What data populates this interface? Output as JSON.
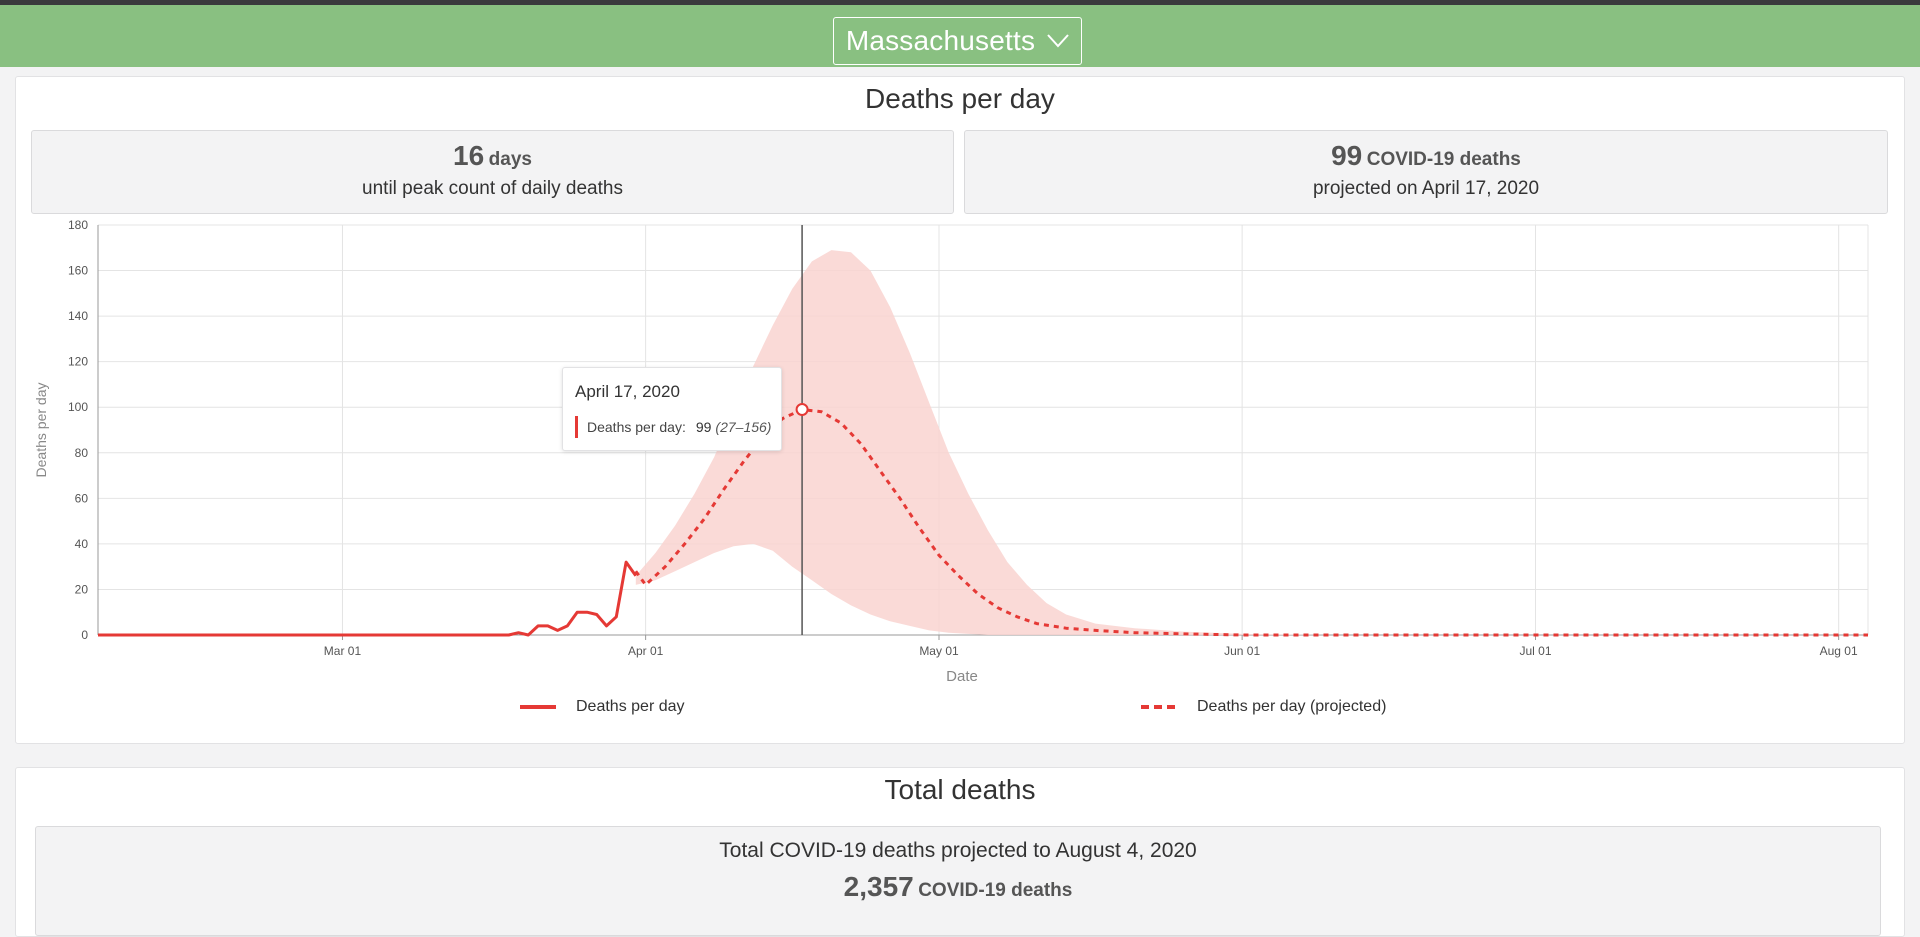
{
  "header": {
    "state_selector": "Massachusetts"
  },
  "deaths_per_day_section": {
    "title": "Deaths per day",
    "peak_stat": {
      "number": "16",
      "unit": "days",
      "description": "until peak count of daily deaths"
    },
    "projection_stat": {
      "number": "99",
      "unit": "COVID-19 deaths",
      "description": "projected on April 17, 2020"
    },
    "tooltip": {
      "date": "April 17, 2020",
      "series_label": "Deaths per day:",
      "value": "99",
      "range": "(27–156)"
    },
    "legend": {
      "actual": "Deaths per day",
      "projected": "Deaths per day (projected)"
    }
  },
  "total_deaths_section": {
    "title": "Total deaths",
    "caption": "Total COVID-19 deaths projected to August 4, 2020",
    "number": "2,357",
    "unit": "COVID-19 deaths"
  },
  "colors": {
    "header_green": "#89c081",
    "series_red": "#e53935",
    "band_pink": "#f9d3d0"
  },
  "chart_data": {
    "type": "line",
    "xlabel": "Date",
    "ylabel": "Deaths per day",
    "ylim": [
      0,
      180
    ],
    "yticks": [
      0,
      20,
      40,
      60,
      80,
      100,
      120,
      140,
      160,
      180
    ],
    "xlim": [
      "2020-02-05",
      "2020-08-04"
    ],
    "xticks": [
      {
        "date": "2020-03-01",
        "label": "Mar 01"
      },
      {
        "date": "2020-04-01",
        "label": "Apr 01"
      },
      {
        "date": "2020-05-01",
        "label": "May 01"
      },
      {
        "date": "2020-06-01",
        "label": "Jun 01"
      },
      {
        "date": "2020-07-01",
        "label": "Jul 01"
      },
      {
        "date": "2020-08-01",
        "label": "Aug 01"
      }
    ],
    "grid": true,
    "legend_position": "bottom",
    "highlight": {
      "date": "2020-04-17",
      "value": 99,
      "lower": 27,
      "upper": 156
    },
    "series": [
      {
        "name": "Deaths per day",
        "style": "solid",
        "points": [
          [
            "2020-02-05",
            0
          ],
          [
            "2020-03-18",
            0
          ],
          [
            "2020-03-19",
            1
          ],
          [
            "2020-03-20",
            0
          ],
          [
            "2020-03-21",
            4
          ],
          [
            "2020-03-22",
            4
          ],
          [
            "2020-03-23",
            2
          ],
          [
            "2020-03-24",
            4
          ],
          [
            "2020-03-25",
            10
          ],
          [
            "2020-03-26",
            10
          ],
          [
            "2020-03-27",
            9
          ],
          [
            "2020-03-28",
            4
          ],
          [
            "2020-03-29",
            8
          ],
          [
            "2020-03-30",
            32
          ],
          [
            "2020-03-31",
            26
          ]
        ]
      },
      {
        "name": "Deaths per day (projected)",
        "style": "dashed",
        "points": [
          [
            "2020-03-31",
            28
          ],
          [
            "2020-04-01",
            22
          ],
          [
            "2020-04-03",
            30
          ],
          [
            "2020-04-05",
            40
          ],
          [
            "2020-04-07",
            51
          ],
          [
            "2020-04-09",
            64
          ],
          [
            "2020-04-11",
            76
          ],
          [
            "2020-04-13",
            87
          ],
          [
            "2020-04-15",
            95
          ],
          [
            "2020-04-17",
            99
          ],
          [
            "2020-04-19",
            98
          ],
          [
            "2020-04-21",
            93
          ],
          [
            "2020-04-23",
            84
          ],
          [
            "2020-04-25",
            72
          ],
          [
            "2020-04-27",
            60
          ],
          [
            "2020-04-29",
            47
          ],
          [
            "2020-05-01",
            35
          ],
          [
            "2020-05-03",
            26
          ],
          [
            "2020-05-05",
            18
          ],
          [
            "2020-05-07",
            12
          ],
          [
            "2020-05-09",
            8
          ],
          [
            "2020-05-11",
            5
          ],
          [
            "2020-05-14",
            3
          ],
          [
            "2020-05-17",
            2
          ],
          [
            "2020-05-21",
            1
          ],
          [
            "2020-05-26",
            0.5
          ],
          [
            "2020-06-01",
            0
          ],
          [
            "2020-08-04",
            0
          ]
        ]
      }
    ],
    "uncertainty_band": [
      [
        "2020-03-31",
        26,
        22
      ],
      [
        "2020-04-02",
        36,
        24
      ],
      [
        "2020-04-04",
        48,
        28
      ],
      [
        "2020-04-06",
        62,
        32
      ],
      [
        "2020-04-08",
        78,
        36
      ],
      [
        "2020-04-10",
        98,
        39
      ],
      [
        "2020-04-12",
        118,
        40
      ],
      [
        "2020-04-14",
        136,
        37
      ],
      [
        "2020-04-16",
        152,
        30
      ],
      [
        "2020-04-18",
        164,
        24
      ],
      [
        "2020-04-20",
        169,
        18
      ],
      [
        "2020-04-22",
        168,
        13
      ],
      [
        "2020-04-24",
        160,
        9
      ],
      [
        "2020-04-26",
        144,
        6
      ],
      [
        "2020-04-28",
        124,
        4
      ],
      [
        "2020-04-30",
        102,
        2
      ],
      [
        "2020-05-02",
        80,
        1
      ],
      [
        "2020-05-04",
        62,
        0.5
      ],
      [
        "2020-05-06",
        46,
        0
      ],
      [
        "2020-05-08",
        32,
        0
      ],
      [
        "2020-05-10",
        22,
        0
      ],
      [
        "2020-05-12",
        14,
        0
      ],
      [
        "2020-05-14",
        9,
        0
      ],
      [
        "2020-05-17",
        5,
        0
      ],
      [
        "2020-05-21",
        3,
        0
      ],
      [
        "2020-05-26",
        1.5,
        0
      ],
      [
        "2020-06-01",
        0.5,
        0
      ],
      [
        "2020-06-10",
        0,
        0
      ]
    ]
  }
}
